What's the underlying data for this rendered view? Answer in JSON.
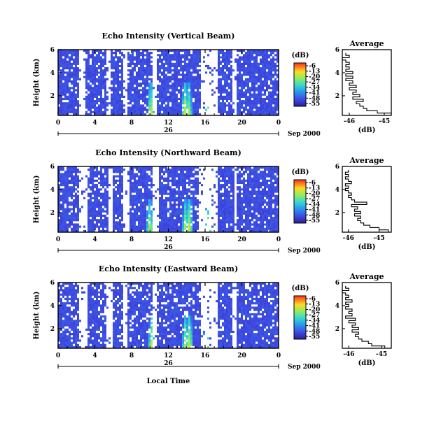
{
  "page": {
    "xlabel": "Local Time",
    "date_label": "Sep 2000",
    "day_label": "26",
    "colorbar_unit": "(dB)",
    "profile_title": "Average",
    "profile_xlabel": "(dB)"
  },
  "chart_data": [
    {
      "type": "heatmap",
      "title": "Echo Intensity (Vertical Beam)",
      "ylabel": "Height (km)",
      "xlabel": "Local Time",
      "x_ticks": [
        "0",
        "4",
        "8",
        "12",
        "16",
        "20",
        "0"
      ],
      "xlim": [
        0,
        24
      ],
      "y_ticks": [
        "2",
        "4",
        "6"
      ],
      "ylim": [
        0.3,
        6
      ],
      "colorbar": {
        "label": "(dB)",
        "ticks": [
          "-6",
          "-13",
          "-20",
          "-27",
          "-34",
          "-41",
          "-48",
          "-55"
        ],
        "range": [
          -55,
          -6
        ]
      },
      "colors": {
        "low": "#3f46e0",
        "gap": "#ffffff",
        "high": "#ff3b1a"
      },
      "date": "Sep 2000",
      "day": "26",
      "no_echo_intervals_hours": [
        [
          2.2,
          3.0
        ],
        [
          5.3,
          5.8
        ],
        [
          7.0,
          7.6
        ],
        [
          10.2,
          10.8
        ],
        [
          15.6,
          17.3
        ],
        [
          19.0,
          19.5
        ]
      ],
      "enhanced_echo_hours": [
        10.1,
        13.8,
        14.2,
        16.3
      ],
      "profile": {
        "title": "Average",
        "xlabel": "(dB)",
        "x_ticks": [
          "-46",
          "-45"
        ],
        "xlim": [
          -46.2,
          -44.8
        ],
        "y_ticks": [
          "2",
          "4",
          "6"
        ],
        "ylim": [
          0.3,
          6
        ],
        "heights_km": [
          0.4,
          0.6,
          0.8,
          1.0,
          1.2,
          1.4,
          1.6,
          1.8,
          2.0,
          2.2,
          2.4,
          2.6,
          2.8,
          3.0,
          3.2,
          3.4,
          3.6,
          3.8,
          4.0,
          4.2,
          4.4,
          4.6,
          4.8,
          5.0,
          5.2,
          5.4,
          5.6
        ],
        "values_db": [
          -44.8,
          -45.2,
          -45.5,
          -45.6,
          -45.7,
          -45.8,
          -45.6,
          -45.9,
          -45.7,
          -45.9,
          -45.8,
          -46.0,
          -45.8,
          -46.0,
          -45.9,
          -46.1,
          -45.9,
          -46.1,
          -45.9,
          -46.1,
          -46.0,
          -46.1,
          -46.0,
          -46.1,
          -46.2,
          -46.0,
          -46.1
        ]
      }
    },
    {
      "type": "heatmap",
      "title": "Echo Intensity (Northward Beam)",
      "ylabel": "Height (km)",
      "xlabel": "Local Time",
      "x_ticks": [
        "0",
        "4",
        "8",
        "12",
        "16",
        "20",
        "0"
      ],
      "xlim": [
        0,
        24
      ],
      "y_ticks": [
        "2",
        "4",
        "6"
      ],
      "ylim": [
        0.3,
        6
      ],
      "colorbar": {
        "label": "(dB)",
        "ticks": [
          "-6",
          "-13",
          "-20",
          "-27",
          "-34",
          "-41",
          "-48",
          "-55"
        ],
        "range": [
          -55,
          -6
        ]
      },
      "colors": {
        "low": "#3f46e0",
        "gap": "#ffffff",
        "high": "#ff3b1a"
      },
      "date": "Sep 2000",
      "day": "26",
      "no_echo_intervals_hours": [
        [
          2.4,
          3.2
        ],
        [
          5.4,
          5.9
        ],
        [
          7.1,
          7.7
        ],
        [
          10.2,
          10.9
        ],
        [
          15.4,
          17.3
        ],
        [
          19.1,
          19.5
        ]
      ],
      "enhanced_echo_hours": [
        10.0,
        13.9,
        14.3,
        16.3
      ],
      "profile": {
        "title": "Average",
        "xlabel": "(dB)",
        "x_ticks": [
          "-46",
          "-45"
        ],
        "xlim": [
          -46.2,
          -44.6
        ],
        "y_ticks": [
          "2",
          "4",
          "6"
        ],
        "ylim": [
          0.3,
          6
        ],
        "heights_km": [
          0.4,
          0.6,
          0.8,
          1.0,
          1.2,
          1.4,
          1.6,
          1.8,
          2.0,
          2.2,
          2.4,
          2.6,
          2.8,
          3.0,
          3.2,
          3.4,
          3.6,
          3.8,
          4.0,
          4.2,
          4.4,
          4.6,
          4.8,
          5.0,
          5.2,
          5.4,
          5.6
        ],
        "values_db": [
          -44.7,
          -45.0,
          -45.3,
          -45.5,
          -45.6,
          -45.7,
          -45.6,
          -45.8,
          -45.6,
          -45.8,
          -45.7,
          -45.9,
          -45.4,
          -45.8,
          -45.9,
          -46.0,
          -45.9,
          -46.0,
          -46.1,
          -46.0,
          -46.1,
          -45.9,
          -46.0,
          -46.1,
          -46.0,
          -46.1,
          -46.0
        ]
      }
    },
    {
      "type": "heatmap",
      "title": "Echo Intensity (Eastward Beam)",
      "ylabel": "Height (km)",
      "xlabel": "Local Time",
      "x_ticks": [
        "0",
        "4",
        "8",
        "12",
        "16",
        "20",
        "0"
      ],
      "xlim": [
        0,
        24
      ],
      "y_ticks": [
        "2",
        "4",
        "6"
      ],
      "ylim": [
        0.3,
        6
      ],
      "colorbar": {
        "label": "(dB)",
        "ticks": [
          "-6",
          "-13",
          "-20",
          "-27",
          "-34",
          "-41",
          "-48",
          "-55"
        ],
        "range": [
          -55,
          -6
        ]
      },
      "colors": {
        "low": "#3f46e0",
        "gap": "#ffffff",
        "high": "#ff3b1a"
      },
      "date": "Sep 2000",
      "day": "26",
      "no_echo_intervals_hours": [
        [
          2.3,
          3.1
        ],
        [
          5.3,
          5.9
        ],
        [
          7.0,
          7.6
        ],
        [
          10.2,
          10.8
        ],
        [
          15.5,
          17.4
        ],
        [
          19.0,
          19.4
        ]
      ],
      "enhanced_echo_hours": [
        10.2,
        13.9,
        14.3,
        16.2
      ],
      "profile": {
        "title": "Average",
        "xlabel": "(dB)",
        "x_ticks": [
          "-46",
          "-45"
        ],
        "xlim": [
          -46.2,
          -44.7
        ],
        "y_ticks": [
          "2",
          "4",
          "6"
        ],
        "ylim": [
          0.3,
          6
        ],
        "heights_km": [
          0.4,
          0.6,
          0.8,
          1.0,
          1.2,
          1.4,
          1.6,
          1.8,
          2.0,
          2.2,
          2.4,
          2.6,
          2.8,
          3.0,
          3.2,
          3.4,
          3.6,
          3.8,
          4.0,
          4.2,
          4.4,
          4.6,
          4.8,
          5.0,
          5.2,
          5.4,
          5.6
        ],
        "values_db": [
          -44.9,
          -45.3,
          -45.4,
          -45.6,
          -45.7,
          -45.8,
          -45.7,
          -45.9,
          -45.7,
          -45.9,
          -45.8,
          -46.0,
          -45.8,
          -46.1,
          -45.9,
          -46.0,
          -45.9,
          -46.1,
          -46.0,
          -46.1,
          -45.9,
          -46.1,
          -46.0,
          -46.1,
          -46.2,
          -46.0,
          -46.1
        ]
      }
    }
  ]
}
